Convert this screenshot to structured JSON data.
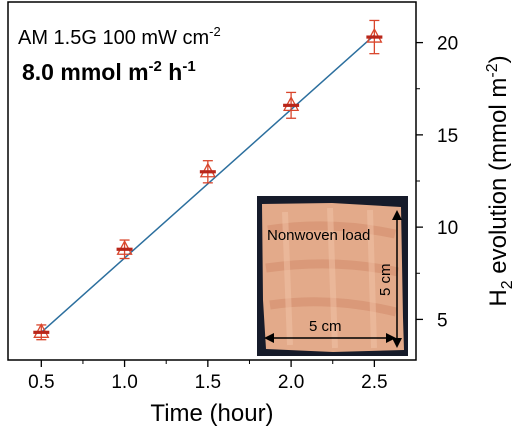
{
  "chart_data": {
    "type": "scatter",
    "annotations": {
      "condition": "AM 1.5G 100 mW cm",
      "condition_exp": "-2",
      "rate_value": "8.0 mmol m",
      "rate_exp1": "-2",
      "rate_unit": " h",
      "rate_exp2": "-1"
    },
    "xlabel": "Time (hour)",
    "ylabel": {
      "pre": "H",
      "sub": "2",
      "mid": " evolution (mmol m",
      "sup": "-2",
      "post": ")"
    },
    "x_ticks": [
      "0.5",
      "1.0",
      "1.5",
      "2.0",
      "2.5"
    ],
    "y_ticks": [
      "5",
      "10",
      "15",
      "20"
    ],
    "xlim": [
      0.3,
      2.75
    ],
    "ylim": [
      2.8,
      22.2
    ],
    "y_axis_side": "right",
    "grid": false,
    "series": [
      {
        "x": [
          0.5,
          1.0,
          1.5,
          2.0,
          2.5
        ],
        "y": [
          4.3,
          8.8,
          13.0,
          16.6,
          20.3
        ],
        "err": [
          0.4,
          0.5,
          0.6,
          0.7,
          0.9
        ],
        "marker": "triangle-open",
        "color": "#d9462c"
      }
    ],
    "fit": {
      "x": [
        0.5,
        2.5
      ],
      "y": [
        4.3,
        20.4
      ],
      "color": "#2c6f9e"
    },
    "inset": {
      "photo_label": "Nonwoven load",
      "width_label": "5 cm",
      "height_label": "5 cm"
    }
  }
}
